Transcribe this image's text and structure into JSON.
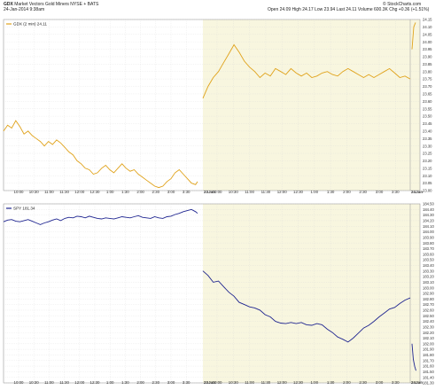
{
  "header": {
    "symbol": "GDX",
    "name": "Market Vectors Gold Miners NYSE + BATS",
    "date_line": "24-Jan-2014 9:38am",
    "ohlc": "Open 24.09  High 24.17  Low 23.94  Last 24.11  Volume 600.3K  Chg +0.36 (+1.51%)",
    "brand": "© StockCharts.com"
  },
  "colors": {
    "gdx_line": "#e0a21a",
    "spy_line": "#1f2590",
    "day2_shade": "#f8f6df",
    "grid": "#d8d8d8",
    "axis_text": "#333333"
  },
  "chart_data": [
    {
      "type": "line",
      "series": [
        {
          "name": "GDX (2 min)",
          "last": "24.11"
        }
      ],
      "legend_text": "GDX (2 min) 24.11",
      "legend_position": "top-left",
      "ylim": [
        23.0,
        24.15
      ],
      "yticks": [
        "23.00",
        "23.05",
        "23.10",
        "23.15",
        "23.20",
        "23.25",
        "23.30",
        "23.35",
        "23.40",
        "23.45",
        "23.50",
        "23.55",
        "23.60",
        "23.65",
        "23.70",
        "23.75",
        "23.80",
        "23.85",
        "23.90",
        "23.95",
        "24.00",
        "24.05",
        "24.10",
        "24.15"
      ],
      "points": [
        [
          0,
          23.4
        ],
        [
          2,
          23.44
        ],
        [
          4,
          23.42
        ],
        [
          6,
          23.47
        ],
        [
          8,
          23.43
        ],
        [
          10,
          23.38
        ],
        [
          12,
          23.4
        ],
        [
          14,
          23.37
        ],
        [
          16,
          23.35
        ],
        [
          18,
          23.33
        ],
        [
          20,
          23.3
        ],
        [
          22,
          23.33
        ],
        [
          24,
          23.31
        ],
        [
          26,
          23.34
        ],
        [
          28,
          23.32
        ],
        [
          30,
          23.29
        ],
        [
          32,
          23.26
        ],
        [
          34,
          23.24
        ],
        [
          36,
          23.2
        ],
        [
          38,
          23.18
        ],
        [
          40,
          23.15
        ],
        [
          42,
          23.14
        ],
        [
          44,
          23.11
        ],
        [
          46,
          23.12
        ],
        [
          48,
          23.15
        ],
        [
          50,
          23.17
        ],
        [
          52,
          23.14
        ],
        [
          54,
          23.12
        ],
        [
          56,
          23.15
        ],
        [
          58,
          23.18
        ],
        [
          60,
          23.15
        ],
        [
          62,
          23.13
        ],
        [
          64,
          23.14
        ],
        [
          66,
          23.11
        ],
        [
          68,
          23.09
        ],
        [
          70,
          23.07
        ],
        [
          72,
          23.05
        ],
        [
          74,
          23.03
        ],
        [
          76,
          23.02
        ],
        [
          78,
          23.03
        ],
        [
          80,
          23.06
        ],
        [
          82,
          23.08
        ],
        [
          84,
          23.12
        ],
        [
          86,
          23.14
        ],
        [
          88,
          23.11
        ],
        [
          90,
          23.08
        ],
        [
          92,
          23.05
        ],
        [
          94,
          23.04
        ],
        [
          95,
          23.06
        ],
        [
          97,
          23.62
        ],
        [
          99,
          23.7
        ],
        [
          101,
          23.76
        ],
        [
          103,
          23.8
        ],
        [
          105,
          23.86
        ],
        [
          107,
          23.92
        ],
        [
          109,
          23.98
        ],
        [
          111,
          23.93
        ],
        [
          113,
          23.87
        ],
        [
          115,
          23.83
        ],
        [
          117,
          23.8
        ],
        [
          119,
          23.76
        ],
        [
          121,
          23.79
        ],
        [
          123,
          23.77
        ],
        [
          125,
          23.82
        ],
        [
          127,
          23.8
        ],
        [
          129,
          23.78
        ],
        [
          131,
          23.82
        ],
        [
          133,
          23.79
        ],
        [
          135,
          23.77
        ],
        [
          137,
          23.79
        ],
        [
          139,
          23.76
        ],
        [
          141,
          23.77
        ],
        [
          143,
          23.79
        ],
        [
          145,
          23.8
        ],
        [
          147,
          23.78
        ],
        [
          149,
          23.77
        ],
        [
          151,
          23.8
        ],
        [
          153,
          23.82
        ],
        [
          155,
          23.8
        ],
        [
          157,
          23.78
        ],
        [
          159,
          23.76
        ],
        [
          161,
          23.78
        ],
        [
          163,
          23.76
        ],
        [
          165,
          23.78
        ],
        [
          167,
          23.8
        ],
        [
          169,
          23.82
        ],
        [
          171,
          23.79
        ],
        [
          173,
          23.76
        ],
        [
          175,
          23.77
        ],
        [
          177,
          23.75
        ]
      ],
      "day1_ticks": [
        "10:00",
        "10:30",
        "11:00",
        "11:30",
        "12:00",
        "12:30",
        "1:00",
        "1:30",
        "2:00",
        "2:30",
        "3:00",
        "3:30"
      ],
      "day2_ticks": [
        "10:00",
        "10:30",
        "11:00",
        "11:30",
        "12:00",
        "12:30",
        "1:00",
        "1:30",
        "2:00",
        "2:30",
        "3:00",
        "3:30"
      ],
      "date_labels": [
        "23Jan",
        "24Jan"
      ]
    },
    {
      "type": "line",
      "series": [
        {
          "name": "SPY",
          "last": "181.34"
        }
      ],
      "legend_text": "SPY 181.34",
      "legend_position": "top-left",
      "ylim": [
        181.3,
        184.5
      ],
      "yticks": [
        "181.30",
        "181.40",
        "181.50",
        "181.60",
        "181.70",
        "181.80",
        "181.90",
        "182.00",
        "182.10",
        "182.20",
        "182.30",
        "182.40",
        "182.50",
        "182.60",
        "182.70",
        "182.80",
        "182.90",
        "183.00",
        "183.10",
        "183.20",
        "183.30",
        "183.40",
        "183.50",
        "183.60",
        "183.70",
        "183.80",
        "183.90",
        "184.00",
        "184.10",
        "184.20",
        "184.30",
        "184.40",
        "184.50"
      ],
      "points": [
        [
          0,
          184.18
        ],
        [
          2,
          184.21
        ],
        [
          4,
          184.22
        ],
        [
          6,
          184.19
        ],
        [
          8,
          184.18
        ],
        [
          10,
          184.2
        ],
        [
          12,
          184.22
        ],
        [
          14,
          184.19
        ],
        [
          16,
          184.16
        ],
        [
          18,
          184.13
        ],
        [
          20,
          184.16
        ],
        [
          22,
          184.18
        ],
        [
          24,
          184.21
        ],
        [
          26,
          184.23
        ],
        [
          28,
          184.2
        ],
        [
          30,
          184.24
        ],
        [
          32,
          184.26
        ],
        [
          34,
          184.25
        ],
        [
          36,
          184.28
        ],
        [
          38,
          184.27
        ],
        [
          40,
          184.25
        ],
        [
          42,
          184.28
        ],
        [
          44,
          184.26
        ],
        [
          46,
          184.24
        ],
        [
          48,
          184.23
        ],
        [
          50,
          184.25
        ],
        [
          52,
          184.24
        ],
        [
          54,
          184.23
        ],
        [
          56,
          184.25
        ],
        [
          58,
          184.27
        ],
        [
          60,
          184.26
        ],
        [
          62,
          184.25
        ],
        [
          64,
          184.27
        ],
        [
          66,
          184.29
        ],
        [
          68,
          184.26
        ],
        [
          70,
          184.25
        ],
        [
          72,
          184.24
        ],
        [
          74,
          184.27
        ],
        [
          76,
          184.25
        ],
        [
          78,
          184.24
        ],
        [
          80,
          184.27
        ],
        [
          82,
          184.28
        ],
        [
          84,
          184.31
        ],
        [
          86,
          184.33
        ],
        [
          88,
          184.36
        ],
        [
          90,
          184.38
        ],
        [
          92,
          184.4
        ],
        [
          94,
          184.36
        ],
        [
          95,
          184.33
        ],
        [
          97,
          183.3
        ],
        [
          99,
          183.22
        ],
        [
          101,
          183.1
        ],
        [
          103,
          183.12
        ],
        [
          105,
          183.02
        ],
        [
          107,
          182.92
        ],
        [
          109,
          182.85
        ],
        [
          111,
          182.74
        ],
        [
          113,
          182.7
        ],
        [
          115,
          182.66
        ],
        [
          117,
          182.64
        ],
        [
          119,
          182.6
        ],
        [
          121,
          182.52
        ],
        [
          123,
          182.48
        ],
        [
          125,
          182.4
        ],
        [
          127,
          182.37
        ],
        [
          129,
          182.36
        ],
        [
          131,
          182.38
        ],
        [
          133,
          182.36
        ],
        [
          135,
          182.38
        ],
        [
          137,
          182.34
        ],
        [
          139,
          182.33
        ],
        [
          141,
          182.36
        ],
        [
          143,
          182.34
        ],
        [
          145,
          182.26
        ],
        [
          147,
          182.2
        ],
        [
          149,
          182.12
        ],
        [
          151,
          182.08
        ],
        [
          153,
          182.03
        ],
        [
          155,
          182.1
        ],
        [
          157,
          182.19
        ],
        [
          159,
          182.28
        ],
        [
          161,
          182.33
        ],
        [
          163,
          182.4
        ],
        [
          165,
          182.48
        ],
        [
          167,
          182.55
        ],
        [
          169,
          182.62
        ],
        [
          171,
          182.65
        ],
        [
          173,
          182.72
        ],
        [
          175,
          182.78
        ],
        [
          177,
          182.82
        ]
      ],
      "day3_points": [
        [
          0,
          182.0
        ],
        [
          1,
          181.72
        ],
        [
          2,
          181.6
        ],
        [
          3,
          181.52
        ]
      ],
      "day1_ticks": [
        "10:00",
        "10:30",
        "11:00",
        "11:30",
        "12:00",
        "12:30",
        "1:00",
        "1:30",
        "2:00",
        "2:30",
        "3:00",
        "3:30"
      ],
      "day2_ticks": [
        "10:00",
        "10:30",
        "11:00",
        "11:30",
        "12:00",
        "12:30",
        "1:00",
        "1:30",
        "2:00",
        "2:30",
        "3:00",
        "3:30"
      ],
      "date_labels": [
        "23Jan",
        "24Jan"
      ]
    }
  ]
}
